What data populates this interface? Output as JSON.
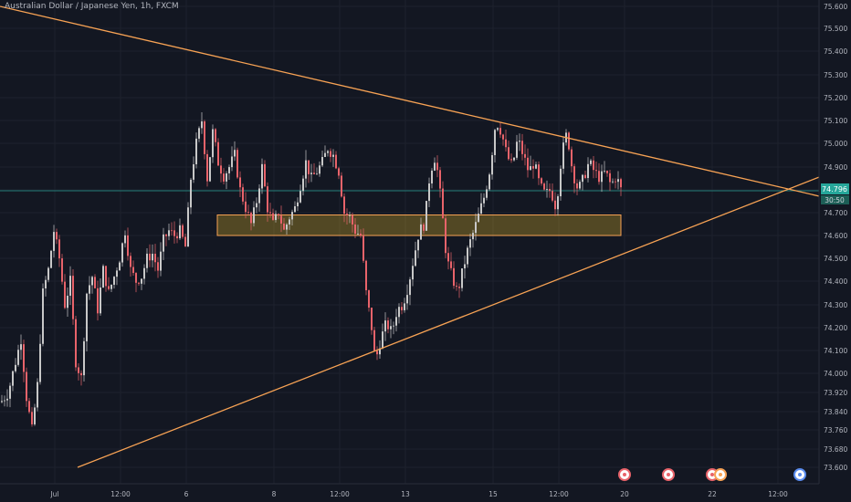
{
  "header": {
    "title": "Australian Dollar / Japanese Yen, 1h, FXCM"
  },
  "colors": {
    "background": "#131722",
    "grid": "#1e222d",
    "up": "#c8c8c8",
    "down": "#e8636a",
    "trendline": "#f7a254",
    "zone_fill": "#c9a227",
    "zone_border": "#f7a254",
    "price_line": "#26a69a",
    "axis_text": "#b2b5be"
  },
  "chart_data": {
    "type": "candlestick",
    "y_ticks": [
      "75.600",
      "75.500",
      "75.400",
      "75.300",
      "75.200",
      "75.100",
      "75.000",
      "74.900",
      "74.800",
      "74.700",
      "74.600",
      "74.500",
      "74.400",
      "74.300",
      "74.200",
      "74.100",
      "74.000",
      "73.920",
      "73.840",
      "73.760",
      "73.680",
      "73.600"
    ],
    "x_ticks": [
      "Jul",
      "12:00",
      "6",
      "8",
      "12:00",
      "13",
      "15",
      "12:00",
      "20",
      "22",
      "12:00"
    ],
    "current_price": {
      "value": "74.796",
      "countdown": "30:50"
    },
    "zone": {
      "low": 74.6,
      "high": 74.69
    },
    "trendlines": [
      {
        "name": "upper",
        "points": [
          [
            0,
            75.6
          ],
          [
            932,
            74.74
          ]
        ]
      },
      {
        "name": "lower",
        "points": [
          [
            85,
            73.6
          ],
          [
            932,
            74.91
          ]
        ]
      }
    ],
    "price_path": [
      [
        0,
        73.88
      ],
      [
        8,
        73.92
      ],
      [
        16,
        74.05
      ],
      [
        22,
        74.15
      ],
      [
        28,
        73.9
      ],
      [
        34,
        73.76
      ],
      [
        40,
        73.95
      ],
      [
        46,
        74.35
      ],
      [
        52,
        74.45
      ],
      [
        58,
        74.62
      ],
      [
        64,
        74.5
      ],
      [
        70,
        74.3
      ],
      [
        76,
        74.4
      ],
      [
        82,
        74.05
      ],
      [
        88,
        73.98
      ],
      [
        94,
        74.35
      ],
      [
        100,
        74.42
      ],
      [
        106,
        74.28
      ],
      [
        112,
        74.45
      ],
      [
        118,
        74.35
      ],
      [
        124,
        74.42
      ],
      [
        130,
        74.5
      ],
      [
        136,
        74.62
      ],
      [
        142,
        74.45
      ],
      [
        148,
        74.4
      ],
      [
        154,
        74.42
      ],
      [
        160,
        74.5
      ],
      [
        166,
        74.52
      ],
      [
        172,
        74.45
      ],
      [
        178,
        74.58
      ],
      [
        184,
        74.62
      ],
      [
        190,
        74.6
      ],
      [
        196,
        74.62
      ],
      [
        202,
        74.55
      ],
      [
        208,
        74.85
      ],
      [
        214,
        75.0
      ],
      [
        220,
        75.1
      ],
      [
        226,
        74.85
      ],
      [
        232,
        75.05
      ],
      [
        238,
        74.92
      ],
      [
        244,
        74.86
      ],
      [
        250,
        74.9
      ],
      [
        256,
        74.95
      ],
      [
        262,
        74.8
      ],
      [
        268,
        74.72
      ],
      [
        274,
        74.65
      ],
      [
        280,
        74.75
      ],
      [
        286,
        74.9
      ],
      [
        292,
        74.72
      ],
      [
        298,
        74.65
      ],
      [
        304,
        74.7
      ],
      [
        310,
        74.62
      ],
      [
        316,
        74.68
      ],
      [
        322,
        74.72
      ],
      [
        328,
        74.82
      ],
      [
        334,
        74.92
      ],
      [
        340,
        74.85
      ],
      [
        346,
        74.88
      ],
      [
        352,
        74.92
      ],
      [
        358,
        74.98
      ],
      [
        364,
        74.95
      ],
      [
        370,
        74.88
      ],
      [
        376,
        74.7
      ],
      [
        382,
        74.68
      ],
      [
        388,
        74.62
      ],
      [
        394,
        74.6
      ],
      [
        400,
        74.35
      ],
      [
        406,
        74.2
      ],
      [
        410,
        74.05
      ],
      [
        416,
        74.15
      ],
      [
        422,
        74.22
      ],
      [
        428,
        74.18
      ],
      [
        434,
        74.28
      ],
      [
        440,
        74.3
      ],
      [
        446,
        74.38
      ],
      [
        452,
        74.5
      ],
      [
        458,
        74.62
      ],
      [
        464,
        74.65
      ],
      [
        470,
        74.88
      ],
      [
        476,
        74.95
      ],
      [
        482,
        74.75
      ],
      [
        488,
        74.5
      ],
      [
        494,
        74.42
      ],
      [
        500,
        74.35
      ],
      [
        506,
        74.45
      ],
      [
        512,
        74.55
      ],
      [
        518,
        74.62
      ],
      [
        524,
        74.7
      ],
      [
        530,
        74.78
      ],
      [
        536,
        74.9
      ],
      [
        542,
        75.1
      ],
      [
        548,
        75.05
      ],
      [
        554,
        74.95
      ],
      [
        560,
        74.9
      ],
      [
        566,
        75.02
      ],
      [
        572,
        74.95
      ],
      [
        578,
        74.88
      ],
      [
        584,
        74.92
      ],
      [
        590,
        74.82
      ],
      [
        596,
        74.78
      ],
      [
        602,
        74.8
      ],
      [
        608,
        74.72
      ],
      [
        614,
        74.95
      ],
      [
        620,
        75.05
      ],
      [
        626,
        74.88
      ],
      [
        632,
        74.8
      ],
      [
        638,
        74.85
      ],
      [
        644,
        74.92
      ],
      [
        650,
        74.88
      ],
      [
        656,
        74.85
      ],
      [
        662,
        74.88
      ],
      [
        668,
        74.82
      ],
      [
        674,
        74.86
      ],
      [
        680,
        74.79
      ]
    ]
  }
}
